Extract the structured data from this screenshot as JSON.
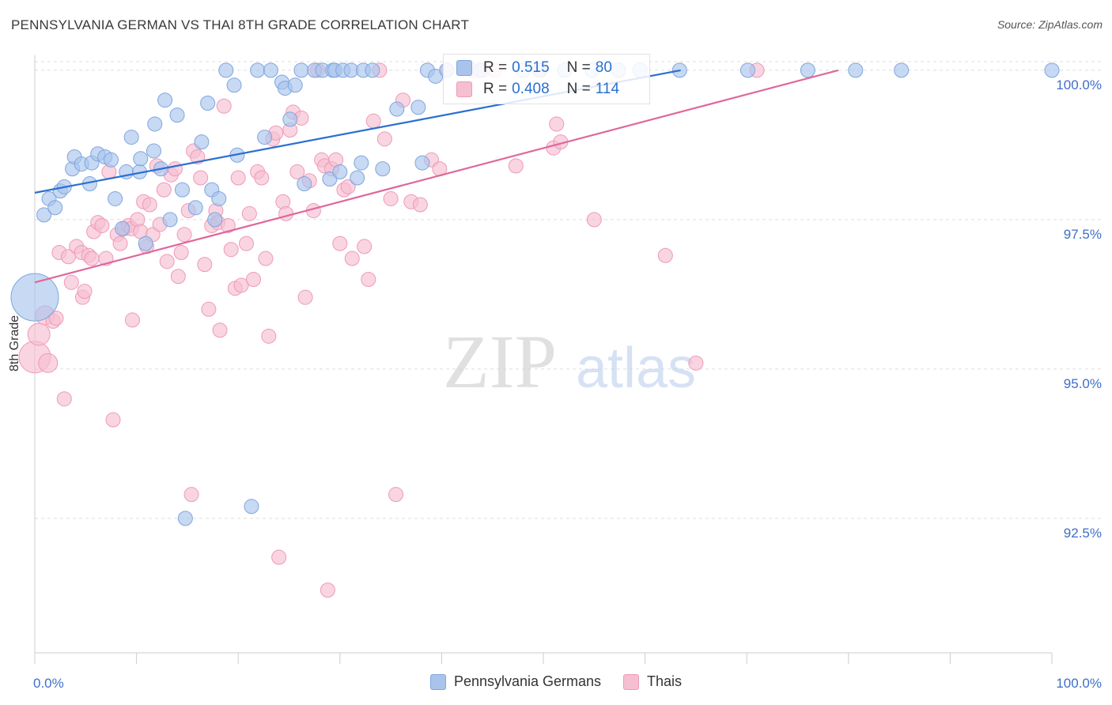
{
  "header": {
    "title": "PENNSYLVANIA GERMAN VS THAI 8TH GRADE CORRELATION CHART",
    "source": "Source: ZipAtlas.com"
  },
  "watermark": {
    "zip": "ZIP",
    "atlas": "atlas"
  },
  "legend_stats": {
    "blue": {
      "r_label": "R =",
      "r_value": "0.515",
      "n_label": "N =",
      "n_value": "80"
    },
    "pink": {
      "r_label": "R =",
      "r_value": "0.408",
      "n_label": "N =",
      "n_value": "114"
    }
  },
  "legend": {
    "blue_label": "Pennsylvania Germans",
    "pink_label": "Thais"
  },
  "colors": {
    "blue_fill": "#a9c4ec",
    "blue_stroke": "#7fa6de",
    "blue_line": "#2a6fd1",
    "pink_fill": "#f6bfd1",
    "pink_stroke": "#ee9ab7",
    "pink_line": "#e0679a",
    "tick_text": "#3f6fc7",
    "grid": "#dddddd"
  },
  "chart_data": {
    "type": "scatter",
    "title": "PENNSYLVANIA GERMAN VS THAI 8TH GRADE CORRELATION CHART",
    "xlabel": "",
    "ylabel": "8th Grade",
    "xlim": [
      0,
      100
    ],
    "ylim": [
      90.25,
      100.25
    ],
    "x_tick_labels": [
      {
        "value": 0,
        "label": "0.0%"
      },
      {
        "value": 100,
        "label": "100.0%"
      }
    ],
    "y_tick_labels": [
      {
        "value": 100,
        "label": "100.0%"
      },
      {
        "value": 97.5,
        "label": "97.5%"
      },
      {
        "value": 95,
        "label": "95.0%"
      },
      {
        "value": 92.5,
        "label": "92.5%"
      }
    ],
    "series": [
      {
        "name": "Pennsylvania Germans",
        "color": "#a9c4ec",
        "trend": {
          "x": [
            0,
            63.5
          ],
          "y": [
            97.95,
            100.0
          ]
        },
        "points": [
          [
            0.0,
            96.2,
            30
          ],
          [
            0.9,
            97.58,
            9
          ],
          [
            1.4,
            97.85,
            9
          ],
          [
            2.0,
            97.7,
            9
          ],
          [
            2.5,
            97.98,
            9
          ],
          [
            2.9,
            98.05,
            9
          ],
          [
            3.7,
            98.35,
            9
          ],
          [
            3.9,
            98.55,
            9
          ],
          [
            4.6,
            98.43,
            9
          ],
          [
            5.4,
            98.1,
            9
          ],
          [
            5.6,
            98.45,
            9
          ],
          [
            6.2,
            98.6,
            9
          ],
          [
            6.9,
            98.55,
            9
          ],
          [
            7.5,
            98.5,
            9
          ],
          [
            7.9,
            97.85,
            9
          ],
          [
            8.6,
            97.35,
            9
          ],
          [
            9.0,
            98.3,
            9
          ],
          [
            9.5,
            98.88,
            9
          ],
          [
            10.3,
            98.3,
            9
          ],
          [
            10.4,
            98.52,
            9
          ],
          [
            10.9,
            97.1,
            9
          ],
          [
            11.7,
            98.65,
            9
          ],
          [
            11.8,
            99.1,
            9
          ],
          [
            12.4,
            98.35,
            9
          ],
          [
            12.8,
            99.5,
            9
          ],
          [
            13.3,
            97.5,
            9
          ],
          [
            14.0,
            99.25,
            9
          ],
          [
            14.5,
            98.0,
            9
          ],
          [
            14.8,
            92.5,
            9
          ],
          [
            15.8,
            97.7,
            9
          ],
          [
            16.4,
            98.8,
            9
          ],
          [
            17.0,
            99.45,
            9
          ],
          [
            17.4,
            98.0,
            9
          ],
          [
            17.7,
            97.5,
            9
          ],
          [
            18.1,
            97.85,
            9
          ],
          [
            18.8,
            100.0,
            9
          ],
          [
            19.6,
            99.75,
            9
          ],
          [
            19.9,
            98.58,
            9
          ],
          [
            21.3,
            92.7,
            9
          ],
          [
            21.9,
            100.0,
            9
          ],
          [
            22.6,
            98.88,
            9
          ],
          [
            23.2,
            100.0,
            9
          ],
          [
            24.3,
            99.8,
            9
          ],
          [
            24.6,
            99.7,
            9
          ],
          [
            25.1,
            99.18,
            9
          ],
          [
            25.6,
            99.75,
            9
          ],
          [
            26.2,
            100.0,
            9
          ],
          [
            26.5,
            98.1,
            9
          ],
          [
            27.5,
            100.0,
            9
          ],
          [
            28.3,
            100.0,
            9
          ],
          [
            29.0,
            98.18,
            9
          ],
          [
            29.3,
            100.0,
            9
          ],
          [
            29.5,
            100.0,
            9
          ],
          [
            30.0,
            98.3,
            9
          ],
          [
            30.3,
            100.0,
            9
          ],
          [
            31.1,
            100.0,
            9
          ],
          [
            31.7,
            98.2,
            9
          ],
          [
            32.1,
            98.45,
            9
          ],
          [
            32.3,
            100.0,
            9
          ],
          [
            33.2,
            100.0,
            9
          ],
          [
            34.2,
            98.35,
            9
          ],
          [
            35.6,
            99.35,
            9
          ],
          [
            37.7,
            99.38,
            9
          ],
          [
            38.1,
            98.45,
            9
          ],
          [
            38.6,
            100.0,
            9
          ],
          [
            39.4,
            99.9,
            9
          ],
          [
            40.5,
            100.0,
            9
          ],
          [
            43.8,
            100.0,
            9
          ],
          [
            48.0,
            100.0,
            9
          ],
          [
            49.6,
            100.0,
            9
          ],
          [
            52.1,
            100.0,
            9
          ],
          [
            54.8,
            100.0,
            9
          ],
          [
            57.4,
            100.0,
            9
          ],
          [
            59.5,
            100.0,
            9
          ],
          [
            63.4,
            100.0,
            9
          ],
          [
            70.1,
            100.0,
            9
          ],
          [
            76.0,
            100.0,
            9
          ],
          [
            80.7,
            100.0,
            9
          ],
          [
            85.2,
            100.0,
            9
          ],
          [
            100.0,
            100.0,
            9
          ]
        ]
      },
      {
        "name": "Thais",
        "color": "#f6bfd1",
        "trend": {
          "x": [
            0,
            79.0
          ],
          "y": [
            96.45,
            100.0
          ]
        },
        "points": [
          [
            0.0,
            95.2,
            20
          ],
          [
            0.4,
            95.58,
            14
          ],
          [
            1.0,
            95.9,
            12
          ],
          [
            1.3,
            95.1,
            12
          ],
          [
            1.8,
            95.8,
            9
          ],
          [
            2.1,
            95.85,
            9
          ],
          [
            2.4,
            96.95,
            9
          ],
          [
            2.9,
            94.5,
            9
          ],
          [
            3.3,
            96.88,
            9
          ],
          [
            3.6,
            96.45,
            9
          ],
          [
            4.1,
            97.05,
            9
          ],
          [
            4.6,
            96.95,
            9
          ],
          [
            4.7,
            96.2,
            9
          ],
          [
            4.9,
            96.3,
            9
          ],
          [
            5.3,
            96.9,
            9
          ],
          [
            5.6,
            96.85,
            9
          ],
          [
            5.8,
            97.3,
            9
          ],
          [
            6.2,
            97.45,
            9
          ],
          [
            6.6,
            97.4,
            9
          ],
          [
            7.0,
            96.85,
            9
          ],
          [
            7.3,
            98.3,
            9
          ],
          [
            7.7,
            94.15,
            9
          ],
          [
            8.1,
            97.25,
            9
          ],
          [
            8.4,
            97.1,
            9
          ],
          [
            8.8,
            97.35,
            9
          ],
          [
            9.2,
            97.4,
            9
          ],
          [
            9.5,
            97.35,
            9
          ],
          [
            9.6,
            95.82,
            9
          ],
          [
            10.1,
            97.5,
            9
          ],
          [
            10.4,
            97.3,
            9
          ],
          [
            10.7,
            97.8,
            9
          ],
          [
            11.0,
            97.05,
            9
          ],
          [
            11.3,
            97.75,
            9
          ],
          [
            11.6,
            97.25,
            9
          ],
          [
            12.0,
            98.4,
            9
          ],
          [
            12.3,
            97.42,
            9
          ],
          [
            12.7,
            98.0,
            9
          ],
          [
            13.0,
            96.8,
            9
          ],
          [
            13.4,
            98.25,
            9
          ],
          [
            13.8,
            98.35,
            9
          ],
          [
            14.1,
            96.55,
            9
          ],
          [
            14.4,
            96.95,
            9
          ],
          [
            14.7,
            97.25,
            9
          ],
          [
            15.1,
            97.65,
            9
          ],
          [
            15.4,
            92.9,
            9
          ],
          [
            15.6,
            98.65,
            9
          ],
          [
            16.0,
            98.55,
            9
          ],
          [
            16.3,
            98.2,
            9
          ],
          [
            16.7,
            96.75,
            9
          ],
          [
            17.1,
            96.0,
            9
          ],
          [
            17.4,
            97.4,
            9
          ],
          [
            17.8,
            97.65,
            9
          ],
          [
            18.0,
            97.45,
            9
          ],
          [
            18.2,
            95.65,
            9
          ],
          [
            18.6,
            99.4,
            9
          ],
          [
            19.0,
            97.4,
            9
          ],
          [
            19.3,
            97.0,
            9
          ],
          [
            19.7,
            96.35,
            9
          ],
          [
            20.0,
            98.2,
            9
          ],
          [
            20.3,
            96.4,
            9
          ],
          [
            20.8,
            97.1,
            9
          ],
          [
            21.1,
            97.6,
            9
          ],
          [
            21.5,
            96.5,
            9
          ],
          [
            21.9,
            98.3,
            9
          ],
          [
            22.3,
            98.2,
            9
          ],
          [
            22.7,
            96.85,
            9
          ],
          [
            23.0,
            95.55,
            9
          ],
          [
            23.4,
            98.85,
            9
          ],
          [
            23.7,
            98.95,
            9
          ],
          [
            24.0,
            91.85,
            9
          ],
          [
            24.4,
            97.8,
            9
          ],
          [
            24.7,
            97.6,
            9
          ],
          [
            25.1,
            99.0,
            9
          ],
          [
            25.4,
            99.3,
            9
          ],
          [
            25.8,
            98.3,
            9
          ],
          [
            26.2,
            99.2,
            9
          ],
          [
            26.6,
            96.2,
            9
          ],
          [
            27.0,
            98.15,
            9
          ],
          [
            27.4,
            97.65,
            9
          ],
          [
            27.8,
            100.0,
            9
          ],
          [
            28.2,
            98.5,
            9
          ],
          [
            28.5,
            98.4,
            9
          ],
          [
            28.8,
            91.3,
            9
          ],
          [
            29.2,
            98.35,
            9
          ],
          [
            29.6,
            98.5,
            9
          ],
          [
            30.0,
            97.1,
            9
          ],
          [
            30.4,
            98.0,
            9
          ],
          [
            30.8,
            98.05,
            9
          ],
          [
            31.2,
            96.85,
            9
          ],
          [
            32.4,
            97.05,
            9
          ],
          [
            32.8,
            96.5,
            9
          ],
          [
            33.3,
            99.15,
            9
          ],
          [
            33.9,
            100.0,
            9
          ],
          [
            34.4,
            98.85,
            9
          ],
          [
            35.0,
            97.85,
            9
          ],
          [
            35.5,
            92.9,
            9
          ],
          [
            36.2,
            99.5,
            9
          ],
          [
            37.0,
            97.8,
            9
          ],
          [
            37.9,
            97.75,
            9
          ],
          [
            39.0,
            98.5,
            9
          ],
          [
            39.8,
            98.35,
            9
          ],
          [
            40.5,
            100.0,
            9
          ],
          [
            43.0,
            100.0,
            9
          ],
          [
            44.1,
            100.0,
            9
          ],
          [
            45.2,
            100.0,
            9
          ],
          [
            47.3,
            98.4,
            9
          ],
          [
            49.7,
            100.0,
            9
          ],
          [
            51.0,
            98.7,
            9
          ],
          [
            51.3,
            99.1,
            9
          ],
          [
            51.7,
            98.8,
            9
          ],
          [
            55.0,
            97.5,
            9
          ],
          [
            62.0,
            96.9,
            9
          ],
          [
            65.0,
            95.1,
            9
          ],
          [
            71.0,
            100.0,
            9
          ]
        ]
      }
    ]
  }
}
